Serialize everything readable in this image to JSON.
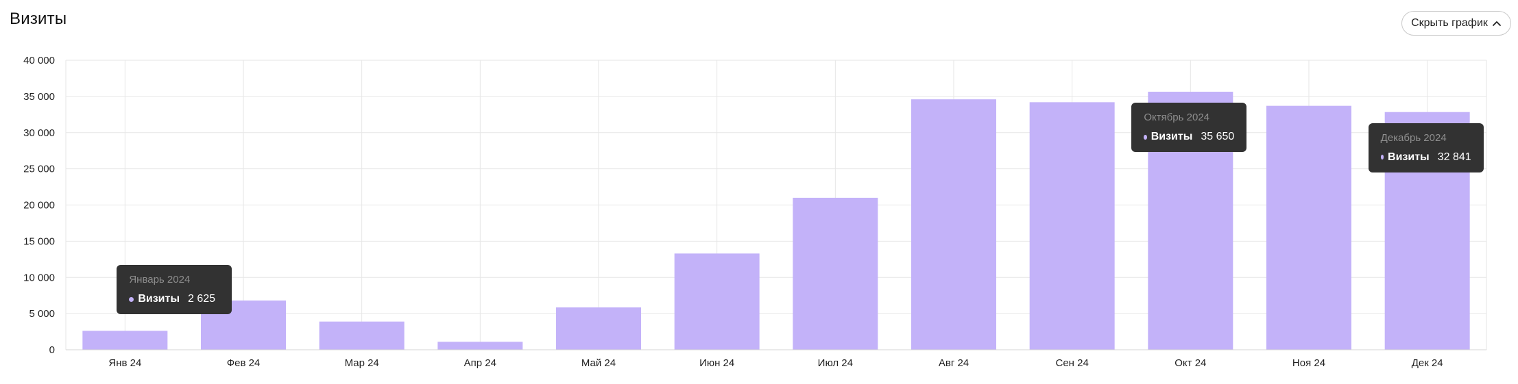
{
  "header": {
    "title": "Визиты",
    "hide_chart_label": "Скрыть график",
    "hide_chart_icon": "chevron-up-icon"
  },
  "colors": {
    "bar": "#c3b2f9",
    "grid": "#e6e6e6",
    "tooltip_bg": "#323232"
  },
  "chart_data": {
    "type": "bar",
    "categories": [
      "Янв 24",
      "Фев 24",
      "Мар 24",
      "Апр 24",
      "Май 24",
      "Июн 24",
      "Июл 24",
      "Авг 24",
      "Сен 24",
      "Окт 24",
      "Ноя 24",
      "Дек 24"
    ],
    "series": [
      {
        "name": "Визиты",
        "values": [
          2625,
          6800,
          3900,
          1100,
          5850,
          13300,
          21000,
          34600,
          34200,
          35650,
          33700,
          32841
        ]
      }
    ],
    "ylim": [
      0,
      40000
    ],
    "yticks": [
      "0",
      "5 000",
      "10 000",
      "15 000",
      "20 000",
      "25 000",
      "30 000",
      "35 000",
      "40 000"
    ],
    "grid": true,
    "tooltips": [
      {
        "title": "Январь 2024",
        "label": "Визиты",
        "value": "2 625",
        "index": 0
      },
      {
        "title": "Октябрь 2024",
        "label": "Визиты",
        "value": "35 650",
        "index": 9
      },
      {
        "title": "Декабрь 2024",
        "label": "Визиты",
        "value": "32 841",
        "index": 11
      }
    ]
  }
}
